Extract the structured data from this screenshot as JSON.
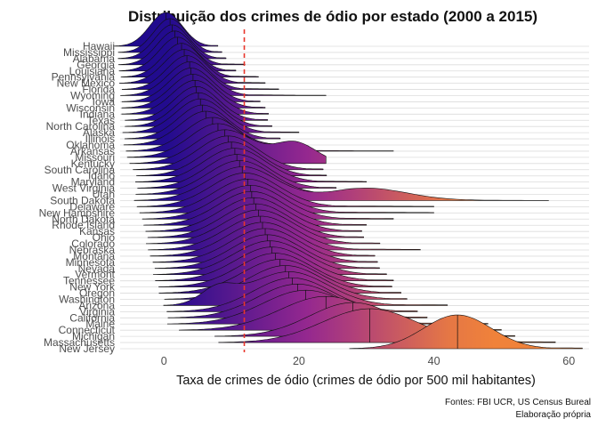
{
  "chart_data": {
    "type": "ridgeline",
    "title": "Distribuição dos crimes de ódio por estado (2000 a 2015)",
    "xlabel": "Taxa de crimes de ódio (crimes de ódio por 500 mil habitantes)",
    "ylabel": "",
    "xlim": [
      -6.5,
      63
    ],
    "xticks": [
      0,
      20,
      40,
      60
    ],
    "reference_line": {
      "x": 11.9,
      "color": "#e8352b",
      "style": "dashed"
    },
    "caption": [
      "Fontes: FBI UCR, US Census Bureal",
      "Elaboração própria"
    ],
    "gradient": {
      "low": "#1f0a8e",
      "mid": "#9c2a8f",
      "high": "#f0823a"
    },
    "grid": "horizontal-baselines",
    "states": [
      {
        "name": "Hawaii",
        "center": 0.3,
        "spread": 2.4,
        "max": 6
      },
      {
        "name": "Mississippi",
        "center": 0.9,
        "spread": 2.4,
        "max": 8
      },
      {
        "name": "Alabama",
        "center": 1.2,
        "spread": 2.5,
        "max": 9
      },
      {
        "name": "Georgia",
        "center": 1.6,
        "spread": 2.6,
        "max": 12
      },
      {
        "name": "Louisiana",
        "center": 2.0,
        "spread": 2.7,
        "max": 10
      },
      {
        "name": "Pennsylvania",
        "center": 2.6,
        "spread": 2.8,
        "max": 14
      },
      {
        "name": "New Mexico",
        "center": 3.0,
        "spread": 3.0,
        "max": 15
      },
      {
        "name": "Florida",
        "center": 3.4,
        "spread": 3.0,
        "max": 17
      },
      {
        "name": "Wyoming",
        "center": 3.8,
        "spread": 3.2,
        "max": 24
      },
      {
        "name": "Iowa",
        "center": 4.0,
        "spread": 3.2,
        "max": 14
      },
      {
        "name": "Wisconsin",
        "center": 4.3,
        "spread": 3.3,
        "max": 15
      },
      {
        "name": "Indiana",
        "center": 4.6,
        "spread": 3.4,
        "max": 13
      },
      {
        "name": "Texas",
        "center": 4.8,
        "spread": 3.3,
        "max": 14
      },
      {
        "name": "North Carolina",
        "center": 5.1,
        "spread": 3.4,
        "max": 16
      },
      {
        "name": "Alaska",
        "center": 5.4,
        "spread": 3.6,
        "max": 20
      },
      {
        "name": "Illinois",
        "center": 5.7,
        "spread": 3.6,
        "max": 14
      },
      {
        "name": "Oklahoma",
        "center": 6.2,
        "spread": 3.8,
        "max": 18
      },
      {
        "name": "Arkansas",
        "center": 7.2,
        "spread": 4.0,
        "max": 34
      },
      {
        "name": "Missouri",
        "center": 8.0,
        "spread": 4.2,
        "max": 22
      },
      {
        "name": "Kentucky",
        "center": 9.0,
        "spread": 4.4,
        "max": 24,
        "second": {
          "center": 19.5,
          "spread": 3.0,
          "weight": 0.6
        }
      },
      {
        "name": "South Carolina",
        "center": 9.5,
        "spread": 4.4,
        "max": 22
      },
      {
        "name": "Idaho",
        "center": 10.0,
        "spread": 4.4,
        "max": 24
      },
      {
        "name": "Maryland",
        "center": 10.5,
        "spread": 4.6,
        "max": 30
      },
      {
        "name": "West Virginia",
        "center": 10.8,
        "spread": 4.6,
        "max": 25
      },
      {
        "name": "Utah",
        "center": 11.2,
        "spread": 4.8,
        "max": 33
      },
      {
        "name": "South Dakota",
        "center": 11.6,
        "spread": 5.0,
        "max": 57,
        "second": {
          "center": 30.0,
          "spread": 6.0,
          "weight": 0.35
        }
      },
      {
        "name": "Delaware",
        "center": 12.0,
        "spread": 5.0,
        "max": 40
      },
      {
        "name": "New Hampshire",
        "center": 12.4,
        "spread": 5.0,
        "max": 40
      },
      {
        "name": "North Dakota",
        "center": 12.8,
        "spread": 5.0,
        "max": 34
      },
      {
        "name": "Rhode Island",
        "center": 13.0,
        "spread": 5.0,
        "max": 30
      },
      {
        "name": "Kansas",
        "center": 13.3,
        "spread": 5.0,
        "max": 28
      },
      {
        "name": "Ohio",
        "center": 13.6,
        "spread": 5.0,
        "max": 25
      },
      {
        "name": "Colorado",
        "center": 14.0,
        "spread": 5.2,
        "max": 32
      },
      {
        "name": "Nebraska",
        "center": 14.3,
        "spread": 5.2,
        "max": 38
      },
      {
        "name": "Montana",
        "center": 14.6,
        "spread": 5.2,
        "max": 30
      },
      {
        "name": "Minnesota",
        "center": 15.0,
        "spread": 5.2,
        "max": 30
      },
      {
        "name": "Nevada",
        "center": 15.3,
        "spread": 5.2,
        "max": 28
      },
      {
        "name": "Vermont",
        "center": 15.7,
        "spread": 5.4,
        "max": 30
      },
      {
        "name": "Tennessee",
        "center": 16.0,
        "spread": 5.4,
        "max": 34
      },
      {
        "name": "New York",
        "center": 16.5,
        "spread": 5.4,
        "max": 30
      },
      {
        "name": "Oregon",
        "center": 17.2,
        "spread": 5.6,
        "max": 34
      },
      {
        "name": "Washington",
        "center": 18.0,
        "spread": 5.6,
        "max": 36
      },
      {
        "name": "Arizona",
        "center": 18.5,
        "spread": 5.8,
        "max": 42,
        "second": {
          "center": 8.0,
          "spread": 2.5,
          "weight": 0.45
        }
      },
      {
        "name": "Virginia",
        "center": 19.0,
        "spread": 5.8,
        "max": 36
      },
      {
        "name": "California",
        "center": 19.8,
        "spread": 6.0,
        "max": 38
      },
      {
        "name": "Maine",
        "center": 21.0,
        "spread": 6.4,
        "max": 48
      },
      {
        "name": "Connecticut",
        "center": 24.0,
        "spread": 6.8,
        "max": 50
      },
      {
        "name": "Michigan",
        "center": 28.0,
        "spread": 6.4,
        "max": 52
      },
      {
        "name": "Massachusetts",
        "center": 30.5,
        "spread": 7.0,
        "max": 58
      },
      {
        "name": "New Jersey",
        "center": 43.5,
        "spread": 5.0,
        "max": 62
      }
    ]
  }
}
